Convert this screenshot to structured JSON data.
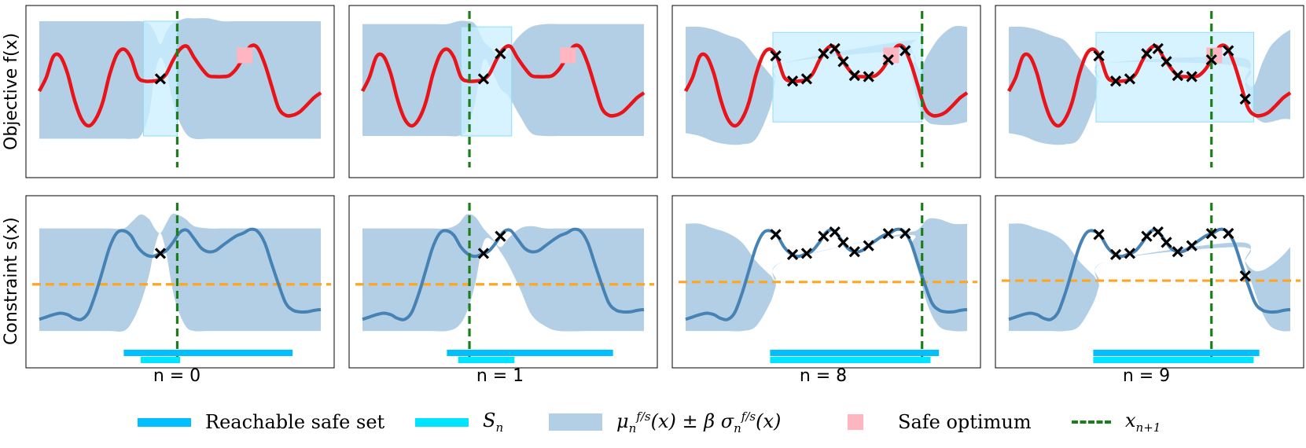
{
  "figure": {
    "row_labels": [
      "Objective f(x)",
      "Constraint s(x)"
    ],
    "iteration_labels": [
      "n = 0",
      "n = 1",
      "n = 8",
      "n = 9"
    ]
  },
  "legend": [
    {
      "key": "reachable",
      "label": "Reachable safe set"
    },
    {
      "key": "sn",
      "label": "S",
      "sub": "n"
    },
    {
      "key": "band",
      "label": "μ",
      "sub": "n",
      "sup": "f/s",
      "tail": "(x) ± β σ",
      "sub2": "n",
      "sup2": "f/s",
      "tail2": "(x)"
    },
    {
      "key": "optimum",
      "label": "Safe optimum"
    },
    {
      "key": "next",
      "label": "x",
      "sub": "n+1"
    }
  ],
  "colors": {
    "objective": "#e8141a",
    "constraint": "#4682b4",
    "band": "#b3cfe5",
    "safe_region": "#c9efff",
    "reachable_safe_set": "#00bfff",
    "sn": "#00e5ff",
    "safe_optimum": "#ffb6c1",
    "next_query": "#1a7f1a",
    "threshold": "#ffa51f"
  },
  "chart_data": {
    "type": "line",
    "x_range": [
      0,
      1
    ],
    "objective_ylim": [
      -1.25,
      1.25
    ],
    "constraint_ylim": [
      -1.3,
      1.5
    ],
    "objective_curve": {
      "x": [
        0,
        0.025,
        0.05,
        0.075,
        0.1,
        0.125,
        0.15,
        0.175,
        0.2,
        0.225,
        0.25,
        0.275,
        0.3,
        0.325,
        0.35,
        0.375,
        0.4,
        0.425,
        0.45,
        0.475,
        0.5,
        0.525,
        0.55,
        0.575,
        0.6,
        0.625,
        0.65,
        0.675,
        0.7,
        0.725,
        0.75,
        0.775,
        0.8,
        0.825,
        0.85,
        0.875,
        0.9,
        0.925,
        0.95,
        0.975,
        1
      ],
      "y": [
        0,
        0.25,
        0.62,
        0.62,
        0.32,
        -0.16,
        -0.5,
        -0.62,
        -0.5,
        -0.2,
        0.3,
        0.65,
        0.75,
        0.6,
        0.25,
        0.18,
        0.18,
        0.2,
        0.3,
        0.55,
        0.75,
        0.8,
        0.6,
        0.42,
        0.28,
        0.26,
        0.26,
        0.28,
        0.4,
        0.6,
        0.8,
        0.78,
        0.5,
        0.1,
        -0.3,
        -0.43,
        -0.43,
        -0.37,
        -0.25,
        -0.12,
        -0.03
      ]
    },
    "constraint_curve": {
      "x": [
        0,
        0.025,
        0.05,
        0.075,
        0.1,
        0.125,
        0.15,
        0.175,
        0.2,
        0.225,
        0.25,
        0.275,
        0.3,
        0.325,
        0.35,
        0.375,
        0.4,
        0.425,
        0.45,
        0.475,
        0.5,
        0.525,
        0.55,
        0.575,
        0.6,
        0.625,
        0.65,
        0.675,
        0.7,
        0.725,
        0.75,
        0.775,
        0.8,
        0.825,
        0.85,
        0.875,
        0.9,
        0.925,
        0.95,
        0.975,
        1
      ],
      "y": [
        -0.95,
        -0.9,
        -0.85,
        -0.82,
        -0.85,
        -0.93,
        -0.95,
        -0.8,
        -0.4,
        0.1,
        0.6,
        0.9,
        0.95,
        0.85,
        0.6,
        0.45,
        0.4,
        0.45,
        0.52,
        0.7,
        0.92,
        0.96,
        0.78,
        0.58,
        0.5,
        0.52,
        0.63,
        0.74,
        0.84,
        0.9,
        0.98,
        0.94,
        0.7,
        0.25,
        -0.2,
        -0.6,
        -0.75,
        -0.79,
        -0.79,
        -0.76,
        -0.74
      ]
    },
    "safety_threshold": {
      "n=0": -0.2,
      "n=1": -0.2,
      "n=8": -0.15,
      "n=9": -0.12
    },
    "panels": [
      {
        "iteration": "n = 0",
        "observations_x": [
          0.43
        ],
        "next_query_x": 0.49,
        "safe_optimum": {
          "x": 0.73,
          "y": 0.8
        },
        "reachable_safe_set": [
          0.3,
          0.9
        ],
        "s_n": [
          0.36,
          0.5
        ],
        "objective_safe_region": {
          "x": [
            0.37,
            0.49
          ],
          "y": [
            -0.8,
            1.25
          ]
        },
        "objective_band": {
          "x": [
            0,
            0.05,
            0.1,
            0.15,
            0.2,
            0.25,
            0.3,
            0.33,
            0.36,
            0.39,
            0.41,
            0.43,
            0.45,
            0.47,
            0.49,
            0.52,
            0.55,
            0.6,
            0.65,
            0.7,
            0.8,
            0.9,
            1
          ],
          "upper": [
            1.25,
            1.25,
            1.25,
            1.25,
            1.25,
            1.25,
            1.25,
            1.25,
            1.25,
            1.2,
            1.05,
            0.84,
            1.05,
            1.2,
            1.25,
            1.3,
            1.3,
            1.3,
            1.25,
            1.25,
            1.25,
            1.25,
            1.25
          ],
          "lower": [
            -0.85,
            -0.85,
            -0.85,
            -0.85,
            -0.85,
            -0.85,
            -0.85,
            -0.85,
            -0.8,
            -0.4,
            0.3,
            0.6,
            0.4,
            -0.1,
            -0.45,
            -0.75,
            -0.85,
            -0.85,
            -0.85,
            -0.85,
            -0.85,
            -0.85,
            -0.85
          ]
        },
        "constraint_band": {
          "x": [
            0,
            0.05,
            0.1,
            0.15,
            0.2,
            0.25,
            0.3,
            0.33,
            0.36,
            0.39,
            0.41,
            0.43,
            0.45,
            0.47,
            0.49,
            0.52,
            0.55,
            0.6,
            0.65,
            0.7,
            0.8,
            0.9,
            1
          ],
          "upper": [
            1.0,
            1.0,
            1.0,
            1.0,
            1.0,
            1.0,
            1.0,
            1.15,
            1.3,
            1.2,
            1.0,
            0.9,
            1.1,
            1.3,
            1.3,
            1.2,
            1.05,
            1.0,
            1.0,
            1.0,
            1.0,
            1.0,
            1.0
          ],
          "lower": [
            -1.2,
            -1.2,
            -1.2,
            -1.2,
            -1.2,
            -1.2,
            -1.2,
            -1.0,
            -0.6,
            0.0,
            0.6,
            0.9,
            0.5,
            -0.2,
            -0.7,
            -1.1,
            -1.2,
            -1.2,
            -1.2,
            -1.2,
            -1.2,
            -1.2,
            -1.2
          ]
        }
      },
      {
        "iteration": "n = 1",
        "observations_x": [
          0.43,
          0.49
        ],
        "next_query_x": 0.38,
        "safe_optimum": {
          "x": 0.73,
          "y": 0.8
        },
        "reachable_safe_set": [
          0.3,
          0.89
        ],
        "s_n": [
          0.34,
          0.54
        ],
        "objective_safe_region": {
          "x": [
            0.35,
            0.53
          ],
          "y": [
            -0.8,
            1.15
          ]
        },
        "objective_band": {
          "x": [
            0,
            0.05,
            0.1,
            0.15,
            0.2,
            0.25,
            0.3,
            0.34,
            0.37,
            0.4,
            0.43,
            0.46,
            0.49,
            0.52,
            0.56,
            0.6,
            0.65,
            0.7,
            0.8,
            0.9,
            1
          ],
          "upper": [
            1.2,
            1.2,
            1.2,
            1.2,
            1.2,
            1.2,
            1.2,
            1.25,
            1.25,
            1.2,
            0.9,
            0.75,
            0.55,
            0.75,
            1.0,
            1.15,
            1.2,
            1.2,
            1.2,
            1.2,
            1.2
          ],
          "lower": [
            -0.8,
            -0.8,
            -0.8,
            -0.8,
            -0.8,
            -0.8,
            -0.8,
            -0.8,
            -0.7,
            -0.2,
            0.55,
            0.35,
            0.05,
            -0.1,
            -0.45,
            -0.75,
            -0.8,
            -0.8,
            -0.8,
            -0.8,
            -0.8
          ]
        },
        "constraint_band": {
          "x": [
            0,
            0.05,
            0.1,
            0.15,
            0.2,
            0.25,
            0.3,
            0.34,
            0.37,
            0.4,
            0.43,
            0.46,
            0.49,
            0.52,
            0.56,
            0.6,
            0.65,
            0.7,
            0.8,
            0.9,
            1
          ],
          "upper": [
            1.0,
            1.0,
            1.0,
            1.0,
            1.0,
            1.0,
            1.0,
            1.1,
            1.3,
            1.25,
            1.0,
            0.8,
            0.6,
            0.8,
            1.0,
            1.05,
            1.0,
            1.0,
            1.0,
            1.0,
            1.0
          ],
          "lower": [
            -1.2,
            -1.2,
            -1.2,
            -1.2,
            -1.2,
            -1.2,
            -1.2,
            -1.1,
            -0.8,
            -0.2,
            0.7,
            0.75,
            0.5,
            0.2,
            -0.3,
            -0.85,
            -1.1,
            -1.2,
            -1.2,
            -1.2,
            -1.2
          ]
        }
      },
      {
        "iteration": "n = 8",
        "observations_x": [
          0.32,
          0.38,
          0.43,
          0.49,
          0.53,
          0.56,
          0.6,
          0.65,
          0.72,
          0.78
        ],
        "next_query_x": 0.84,
        "safe_optimum": {
          "x": 0.73,
          "y": 0.8
        },
        "reachable_safe_set": [
          0.3,
          0.9
        ],
        "s_n": [
          0.3,
          0.87
        ],
        "objective_safe_region": {
          "x": [
            0.31,
            0.84
          ],
          "y": [
            -0.55,
            1.05
          ]
        },
        "objective_band": {
          "x": [
            0,
            0.05,
            0.1,
            0.15,
            0.2,
            0.25,
            0.3,
            0.32,
            0.35,
            0.78,
            0.8,
            0.83,
            0.86,
            0.9,
            0.95,
            1
          ],
          "upper": [
            1.15,
            1.15,
            1.1,
            1.0,
            0.9,
            0.6,
            0.3,
            0.2,
            0.5,
            0.9,
            0.8,
            0.4,
            0.65,
            0.95,
            1.15,
            1.15
          ],
          "lower": [
            -0.75,
            -0.8,
            -0.9,
            -0.95,
            -0.95,
            -0.85,
            -0.3,
            0.2,
            0.5,
            0.7,
            0.3,
            -0.3,
            -0.55,
            -0.6,
            -0.6,
            -0.55
          ]
        },
        "constraint_band": {
          "x": [
            0,
            0.05,
            0.1,
            0.15,
            0.2,
            0.25,
            0.3,
            0.32,
            0.35,
            0.78,
            0.8,
            0.83,
            0.86,
            0.9,
            0.95,
            1
          ],
          "upper": [
            1.1,
            1.1,
            1.0,
            0.9,
            0.7,
            0.3,
            0.0,
            -0.1,
            0.3,
            0.9,
            0.9,
            1.0,
            1.2,
            1.2,
            1.1,
            1.1
          ],
          "lower": [
            -1.2,
            -1.2,
            -1.2,
            -1.2,
            -1.2,
            -1.1,
            -0.6,
            -0.25,
            0.3,
            0.85,
            0.6,
            0.0,
            -0.65,
            -1.1,
            -1.2,
            -1.2
          ]
        }
      },
      {
        "iteration": "n = 9",
        "observations_x": [
          0.32,
          0.38,
          0.43,
          0.49,
          0.53,
          0.56,
          0.6,
          0.65,
          0.72,
          0.78,
          0.84
        ],
        "next_query_x": 0.72,
        "safe_optimum": {
          "x": 0.73,
          "y": 0.8
        },
        "reachable_safe_set": [
          0.3,
          0.89
        ],
        "s_n": [
          0.3,
          0.87
        ],
        "objective_safe_region": {
          "x": [
            0.31,
            0.87
          ],
          "y": [
            -0.55,
            1.05
          ]
        },
        "objective_band": {
          "x": [
            0,
            0.05,
            0.1,
            0.15,
            0.2,
            0.25,
            0.3,
            0.32,
            0.35,
            0.82,
            0.84,
            0.87,
            0.9,
            0.93,
            0.97,
            1
          ],
          "upper": [
            1.15,
            1.15,
            1.1,
            1.0,
            0.9,
            0.6,
            0.3,
            0.2,
            0.5,
            0.6,
            0.2,
            0.1,
            0.5,
            0.8,
            1.0,
            1.1
          ],
          "lower": [
            -0.75,
            -0.8,
            -0.9,
            -0.95,
            -0.95,
            -0.85,
            -0.3,
            0.2,
            0.5,
            0.45,
            0.1,
            -0.4,
            -0.55,
            -0.55,
            -0.5,
            -0.5
          ]
        },
        "constraint_band": {
          "x": [
            0,
            0.05,
            0.1,
            0.15,
            0.2,
            0.25,
            0.3,
            0.32,
            0.35,
            0.82,
            0.84,
            0.87,
            0.9,
            0.93,
            0.97,
            1
          ],
          "upper": [
            1.1,
            1.1,
            1.0,
            0.9,
            0.7,
            0.3,
            0.0,
            -0.1,
            0.3,
            0.7,
            0.3,
            0.1,
            0.1,
            0.2,
            0.4,
            0.6
          ],
          "lower": [
            -1.2,
            -1.2,
            -1.2,
            -1.2,
            -1.2,
            -1.1,
            -0.6,
            -0.25,
            0.3,
            0.6,
            0.25,
            -0.3,
            -0.8,
            -1.1,
            -1.2,
            -1.2
          ]
        }
      }
    ]
  }
}
